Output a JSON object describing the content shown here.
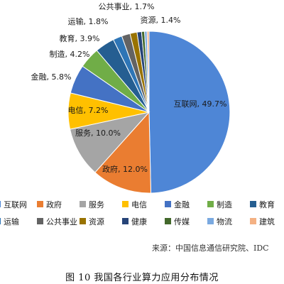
{
  "chart_data": {
    "type": "pie",
    "title": "",
    "slices": [
      {
        "label": "互联网",
        "value": 49.7,
        "display": "互联网, 49.7%",
        "color": "#4e86d6"
      },
      {
        "label": "政府",
        "value": 12.0,
        "display": "政府, 12.0%",
        "color": "#ea7d31"
      },
      {
        "label": "服务",
        "value": 10.0,
        "display": "服务, 10.0%",
        "color": "#a5a5a5"
      },
      {
        "label": "电信",
        "value": 7.2,
        "display": "电信, 7.2%",
        "color": "#ffc000"
      },
      {
        "label": "金融",
        "value": 5.8,
        "display": "金融, 5.8%",
        "color": "#4472c4"
      },
      {
        "label": "制造",
        "value": 4.2,
        "display": "制造, 4.2%",
        "color": "#70ad47"
      },
      {
        "label": "教育",
        "value": 3.9,
        "display": "教育, 3.9%",
        "color": "#255e91"
      },
      {
        "label": "运输",
        "value": 1.8,
        "display": "运输, 1.8%",
        "color": "#2e75b6"
      },
      {
        "label": "公共事业",
        "value": 1.7,
        "display": "公共事业, 1.7%",
        "color": "#636363"
      },
      {
        "label": "资源",
        "value": 1.4,
        "display": "资源, 1.4%",
        "color": "#997300"
      },
      {
        "label": "健康",
        "value": 0.9,
        "display": "",
        "color": "#264478"
      },
      {
        "label": "传媒",
        "value": 0.6,
        "display": "",
        "color": "#43682b"
      },
      {
        "label": "物流",
        "value": 0.5,
        "display": "",
        "color": "#7aa9e0"
      },
      {
        "label": "建筑",
        "value": 0.4,
        "display": "",
        "color": "#f4b183"
      }
    ],
    "legend": {
      "placement": "bottom",
      "rows": [
        [
          {
            "label": "互联网",
            "color": "#4e86d6"
          },
          {
            "label": "政府",
            "color": "#ea7d31"
          },
          {
            "label": "服务",
            "color": "#a5a5a5"
          },
          {
            "label": "电信",
            "color": "#ffc000"
          },
          {
            "label": "金融",
            "color": "#4472c4"
          },
          {
            "label": "制造",
            "color": "#70ad47"
          },
          {
            "label": "教育",
            "color": "#255e91"
          }
        ],
        [
          {
            "label": "运输",
            "color": "#2e75b6"
          },
          {
            "label": "公共事业",
            "color": "#636363"
          },
          {
            "label": "资源",
            "color": "#997300"
          },
          {
            "label": "健康",
            "color": "#264478"
          },
          {
            "label": "传媒",
            "color": "#43682b"
          },
          {
            "label": "物流",
            "color": "#7aa9e0"
          },
          {
            "label": "建筑",
            "color": "#f4b183"
          }
        ]
      ]
    }
  },
  "source_note": "来源：中国信息通信研究院、IDC",
  "caption": "图 10 我国各行业算力应用分布情况"
}
